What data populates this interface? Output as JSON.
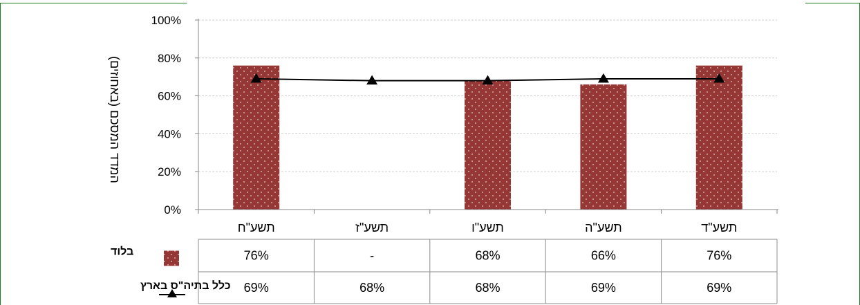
{
  "chart_data": {
    "type": "bar",
    "categories": [
      "תשע\"ד",
      "תשע\"ה",
      "תשע\"ו",
      "תשע\"ז",
      "תשע\"ח"
    ],
    "ylabel": "המדד המסכם (באחוזים)",
    "ylim": [
      0,
      100
    ],
    "yticks": [
      "0%",
      "20%",
      "40%",
      "60%",
      "80%",
      "100%"
    ],
    "grid": true,
    "series": [
      {
        "name": "בלוד",
        "type": "bar",
        "values": [
          76,
          66,
          68,
          null,
          76
        ],
        "labels": [
          "76%",
          "66%",
          "68%",
          "-",
          "76%"
        ],
        "color": "#953735"
      },
      {
        "name": "כלל בתיה\"ס בארץ",
        "type": "line",
        "values": [
          69,
          69,
          68,
          68,
          69
        ],
        "labels": [
          "69%",
          "69%",
          "68%",
          "68%",
          "69%"
        ],
        "color": "#000000"
      }
    ]
  },
  "colors": {
    "frame": "#1e7b1e",
    "bar": "#953735",
    "grid": "#d0d0d0",
    "table_border": "#8c8c8c"
  }
}
